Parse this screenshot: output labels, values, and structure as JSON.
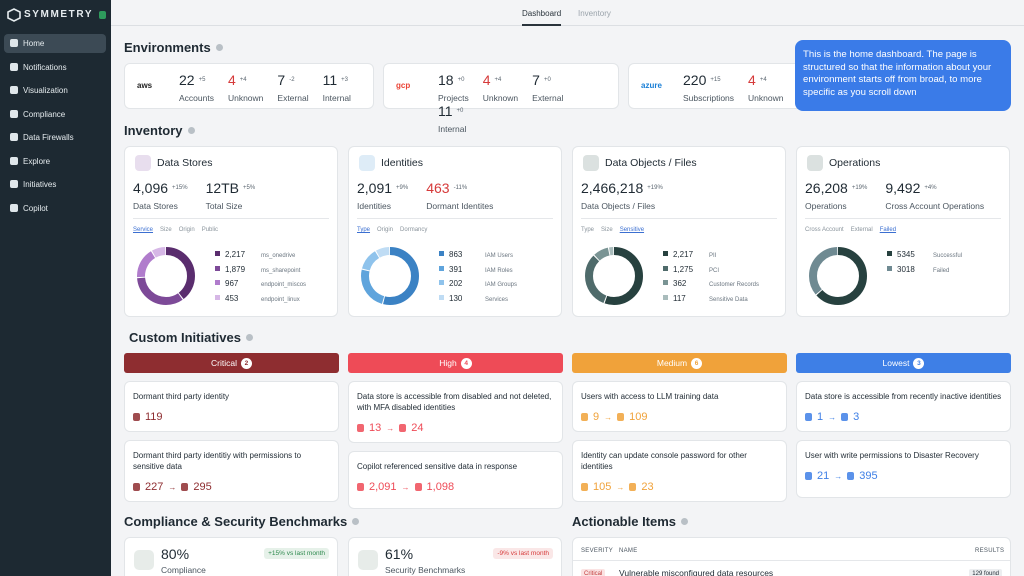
{
  "sidebar": {
    "brand": "SYMMETRY",
    "nav": [
      "Home",
      "Notifications",
      "Visualization",
      "Compliance",
      "Data Firewalls",
      "Explore",
      "Initiatives",
      "Copilot"
    ]
  },
  "tabs": [
    "Dashboard",
    "Inventory"
  ],
  "environments": {
    "title": "Environments",
    "cards": [
      {
        "logo": "aws",
        "stats": [
          {
            "value": "22",
            "delta": "+5",
            "label": "Accounts"
          },
          {
            "value": "4",
            "delta": "+4",
            "label": "Unknown",
            "color": "#d63a3a"
          },
          {
            "value": "7",
            "delta": "-2",
            "label": "External"
          },
          {
            "value": "11",
            "delta": "+3",
            "label": "Internal"
          }
        ]
      },
      {
        "logo": "gcp",
        "stats": [
          {
            "value": "18",
            "delta": "+0",
            "label": "Projects"
          },
          {
            "value": "4",
            "delta": "+4",
            "label": "Unknown",
            "color": "#d63a3a"
          },
          {
            "value": "7",
            "delta": "+0",
            "label": "External"
          },
          {
            "value": "11",
            "delta": "+0",
            "label": "Internal"
          }
        ]
      },
      {
        "logo": "azure",
        "stats": [
          {
            "value": "220",
            "delta": "+15",
            "label": "Subscriptions"
          },
          {
            "value": "4",
            "delta": "+4",
            "label": "Unknown",
            "color": "#d63a3a"
          }
        ]
      }
    ]
  },
  "tooltip": "This is the home dashboard. The page is structured so that the information about your environment starts off from broad, to more specific as you scroll down",
  "inventory": {
    "title": "Inventory",
    "cards": [
      {
        "title": "Data Stores",
        "icon_color": "#8a5aa8",
        "stats": [
          {
            "value": "4,096",
            "delta": "+15%",
            "label": "Data Stores"
          },
          {
            "value": "12TB",
            "delta": "+5%",
            "label": "Total Size"
          }
        ],
        "filters": [
          "Service",
          "Size",
          "Origin",
          "Public"
        ],
        "active_filter": 0,
        "items": [
          {
            "value": 2217,
            "label": "2,217",
            "name": "ms_onedrive",
            "color": "#5a2d6e"
          },
          {
            "value": 1879,
            "label": "1,879",
            "name": "ms_sharepoint",
            "color": "#7d4a98"
          },
          {
            "value": 967,
            "label": "967",
            "name": "endpoint_miscos",
            "color": "#b07ccc"
          },
          {
            "value": 453,
            "label": "453",
            "name": "endpoint_linux",
            "color": "#d6b7e6"
          }
        ]
      },
      {
        "title": "Identities",
        "icon_color": "#5aa0d8",
        "stats": [
          {
            "value": "2,091",
            "delta": "+9%",
            "label": "Identities"
          },
          {
            "value": "463",
            "delta": "-11%",
            "label": "Dormant Identites",
            "color": "#d63a3a"
          }
        ],
        "filters": [
          "Type",
          "Origin",
          "Dormancy"
        ],
        "active_filter": 0,
        "items": [
          {
            "value": 863,
            "name": "IAM Users",
            "color": "#3b82c4"
          },
          {
            "value": 391,
            "name": "IAM Roles",
            "color": "#5fa4dc"
          },
          {
            "value": 202,
            "name": "IAM Groups",
            "color": "#8fc3ec"
          },
          {
            "value": 130,
            "name": "Services",
            "color": "#bfdcf4"
          }
        ]
      },
      {
        "title": "Data Objects / Files",
        "icon_color": "#4a6a64",
        "stats": [
          {
            "value": "2,466,218",
            "delta": "+19%",
            "label": "Data Objects / Files"
          }
        ],
        "filters": [
          "Type",
          "Size",
          "Sensitive"
        ],
        "active_filter": 2,
        "items": [
          {
            "value": 2217,
            "label": "2,217",
            "name": "PII",
            "color": "#27413f"
          },
          {
            "value": 1275,
            "label": "1,275",
            "name": "PCI",
            "color": "#4f6b6b"
          },
          {
            "value": 362,
            "name": "Customer Records",
            "color": "#7a9494"
          },
          {
            "value": 117,
            "name": "Sensitive Data",
            "color": "#a9bcbc"
          }
        ]
      },
      {
        "title": "Operations",
        "icon_color": "#4a6a64",
        "stats": [
          {
            "value": "26,208",
            "delta": "+19%",
            "label": "Operations"
          },
          {
            "value": "9,492",
            "delta": "+4%",
            "label": "Cross Account Operations"
          }
        ],
        "filters": [
          "Cross Account",
          "External",
          "Failed"
        ],
        "active_filter": 2,
        "items": [
          {
            "value": 5345,
            "name": "Successful",
            "color": "#27413f"
          },
          {
            "value": 3018,
            "name": "Failed",
            "color": "#6f8a92"
          }
        ]
      }
    ]
  },
  "initiatives": {
    "title": "Custom Initiatives",
    "columns": [
      {
        "name": "Critical",
        "count": 2,
        "color": "#8e2d30",
        "items": [
          {
            "title": "Dormant third party identity",
            "from": "119"
          },
          {
            "title": "Dormant third party identitiy with permissions to sensitive data",
            "from": "227",
            "to": "295"
          }
        ]
      },
      {
        "name": "High",
        "count": 4,
        "color": "#ee4b57",
        "items": [
          {
            "title": "Data store is accessible from disabled and not deleted, with MFA disabled identities",
            "from": "13",
            "to": "24"
          },
          {
            "title": "Copilot referenced sensitive data in response",
            "from": "2,091",
            "to": "1,098"
          }
        ]
      },
      {
        "name": "Medium",
        "count": 6,
        "color": "#f0a23a",
        "items": [
          {
            "title": "Users with access to LLM training data",
            "from": "9",
            "to": "109"
          },
          {
            "title": "Identity can update console password for other identities",
            "from": "105",
            "to": "23"
          }
        ]
      },
      {
        "name": "Lowest",
        "count": 3,
        "color": "#3e7fe6",
        "items": [
          {
            "title": "Data store is accessible from recently inactive identities",
            "from": "1",
            "to": "3"
          },
          {
            "title": "User with write permissions to Disaster Recovery",
            "from": "21",
            "to": "395"
          }
        ]
      }
    ]
  },
  "benchmarks": {
    "title": "Compliance & Security Benchmarks",
    "cards": [
      {
        "value": "80%",
        "delta": "+15% vs last month",
        "label": "Compliance",
        "color": "#2e8a4e"
      },
      {
        "value": "61%",
        "delta": "-9% vs last month",
        "label": "Security Benchmarks",
        "color": "#d63a3a"
      }
    ]
  },
  "actionable": {
    "title": "Actionable Items",
    "headers": [
      "SEVERITY",
      "NAME",
      "RESULTS"
    ],
    "rows": [
      [
        "Critical",
        "Vulnerable misconfigured data resources",
        "129 found"
      ]
    ]
  }
}
